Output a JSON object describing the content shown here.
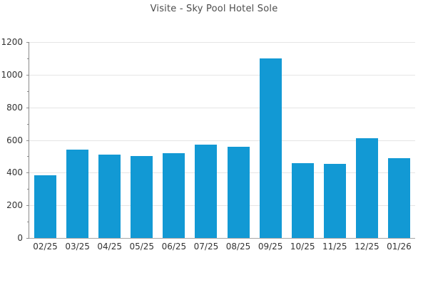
{
  "chart_data": {
    "type": "bar",
    "title": "Visite - Sky Pool Hotel Sole",
    "categories": [
      "02/25",
      "03/25",
      "04/25",
      "05/25",
      "06/25",
      "07/25",
      "08/25",
      "09/25",
      "10/25",
      "11/25",
      "12/25",
      "01/26"
    ],
    "values": [
      385,
      540,
      510,
      500,
      520,
      570,
      560,
      1100,
      460,
      455,
      610,
      490
    ],
    "xlabel": "",
    "ylabel": "",
    "ylim": [
      0,
      1200
    ],
    "y_major_step": 200,
    "y_minor_step": 100,
    "y_tick_labels": [
      "0",
      "200",
      "400",
      "600",
      "800",
      "1000",
      "1200"
    ],
    "grid": true,
    "legend_position": "none",
    "colors": {
      "bar": "#1299d4",
      "grid": "#e5e5e5",
      "y_axis": "#8a8a8a",
      "x_axis": "#a6a6a6",
      "tick": "#8a8a8a",
      "tick_label": "#333333",
      "title": "#4d4d4d",
      "background": "#ffffff"
    }
  }
}
